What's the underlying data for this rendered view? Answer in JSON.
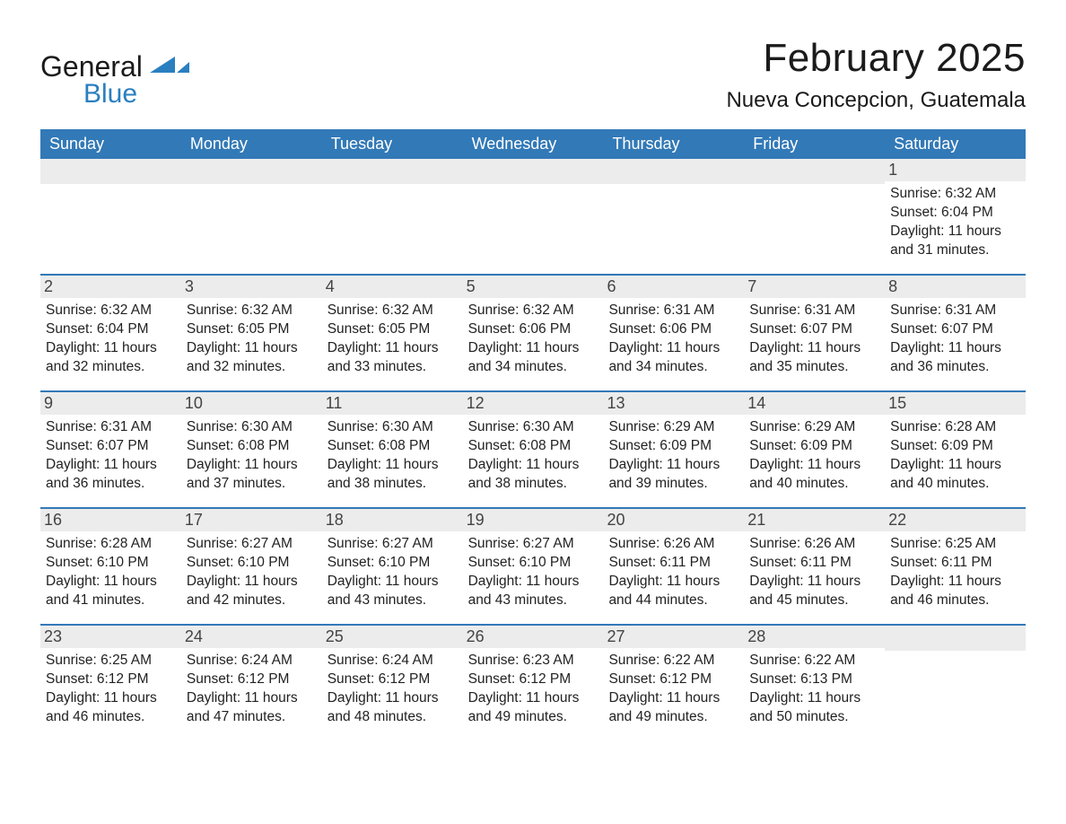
{
  "brand": {
    "general": "General",
    "blue": "Blue"
  },
  "title": "February 2025",
  "location": "Nueva Concepcion, Guatemala",
  "colors": {
    "header_bg": "#3279b7",
    "header_text": "#ffffff",
    "daynum_bg": "#ececec",
    "rule": "#3279b7",
    "accent": "#2a7fbf",
    "text": "#222222"
  },
  "fonts": {
    "title_size": 44,
    "location_size": 24,
    "weekday_size": 18,
    "body_size": 15.5
  },
  "weekdays": [
    "Sunday",
    "Monday",
    "Tuesday",
    "Wednesday",
    "Thursday",
    "Friday",
    "Saturday"
  ],
  "weeks": [
    [
      null,
      null,
      null,
      null,
      null,
      null,
      {
        "n": "1",
        "sunrise": "Sunrise: 6:32 AM",
        "sunset": "Sunset: 6:04 PM",
        "day1": "Daylight: 11 hours",
        "day2": "and 31 minutes."
      }
    ],
    [
      {
        "n": "2",
        "sunrise": "Sunrise: 6:32 AM",
        "sunset": "Sunset: 6:04 PM",
        "day1": "Daylight: 11 hours",
        "day2": "and 32 minutes."
      },
      {
        "n": "3",
        "sunrise": "Sunrise: 6:32 AM",
        "sunset": "Sunset: 6:05 PM",
        "day1": "Daylight: 11 hours",
        "day2": "and 32 minutes."
      },
      {
        "n": "4",
        "sunrise": "Sunrise: 6:32 AM",
        "sunset": "Sunset: 6:05 PM",
        "day1": "Daylight: 11 hours",
        "day2": "and 33 minutes."
      },
      {
        "n": "5",
        "sunrise": "Sunrise: 6:32 AM",
        "sunset": "Sunset: 6:06 PM",
        "day1": "Daylight: 11 hours",
        "day2": "and 34 minutes."
      },
      {
        "n": "6",
        "sunrise": "Sunrise: 6:31 AM",
        "sunset": "Sunset: 6:06 PM",
        "day1": "Daylight: 11 hours",
        "day2": "and 34 minutes."
      },
      {
        "n": "7",
        "sunrise": "Sunrise: 6:31 AM",
        "sunset": "Sunset: 6:07 PM",
        "day1": "Daylight: 11 hours",
        "day2": "and 35 minutes."
      },
      {
        "n": "8",
        "sunrise": "Sunrise: 6:31 AM",
        "sunset": "Sunset: 6:07 PM",
        "day1": "Daylight: 11 hours",
        "day2": "and 36 minutes."
      }
    ],
    [
      {
        "n": "9",
        "sunrise": "Sunrise: 6:31 AM",
        "sunset": "Sunset: 6:07 PM",
        "day1": "Daylight: 11 hours",
        "day2": "and 36 minutes."
      },
      {
        "n": "10",
        "sunrise": "Sunrise: 6:30 AM",
        "sunset": "Sunset: 6:08 PM",
        "day1": "Daylight: 11 hours",
        "day2": "and 37 minutes."
      },
      {
        "n": "11",
        "sunrise": "Sunrise: 6:30 AM",
        "sunset": "Sunset: 6:08 PM",
        "day1": "Daylight: 11 hours",
        "day2": "and 38 minutes."
      },
      {
        "n": "12",
        "sunrise": "Sunrise: 6:30 AM",
        "sunset": "Sunset: 6:08 PM",
        "day1": "Daylight: 11 hours",
        "day2": "and 38 minutes."
      },
      {
        "n": "13",
        "sunrise": "Sunrise: 6:29 AM",
        "sunset": "Sunset: 6:09 PM",
        "day1": "Daylight: 11 hours",
        "day2": "and 39 minutes."
      },
      {
        "n": "14",
        "sunrise": "Sunrise: 6:29 AM",
        "sunset": "Sunset: 6:09 PM",
        "day1": "Daylight: 11 hours",
        "day2": "and 40 minutes."
      },
      {
        "n": "15",
        "sunrise": "Sunrise: 6:28 AM",
        "sunset": "Sunset: 6:09 PM",
        "day1": "Daylight: 11 hours",
        "day2": "and 40 minutes."
      }
    ],
    [
      {
        "n": "16",
        "sunrise": "Sunrise: 6:28 AM",
        "sunset": "Sunset: 6:10 PM",
        "day1": "Daylight: 11 hours",
        "day2": "and 41 minutes."
      },
      {
        "n": "17",
        "sunrise": "Sunrise: 6:27 AM",
        "sunset": "Sunset: 6:10 PM",
        "day1": "Daylight: 11 hours",
        "day2": "and 42 minutes."
      },
      {
        "n": "18",
        "sunrise": "Sunrise: 6:27 AM",
        "sunset": "Sunset: 6:10 PM",
        "day1": "Daylight: 11 hours",
        "day2": "and 43 minutes."
      },
      {
        "n": "19",
        "sunrise": "Sunrise: 6:27 AM",
        "sunset": "Sunset: 6:10 PM",
        "day1": "Daylight: 11 hours",
        "day2": "and 43 minutes."
      },
      {
        "n": "20",
        "sunrise": "Sunrise: 6:26 AM",
        "sunset": "Sunset: 6:11 PM",
        "day1": "Daylight: 11 hours",
        "day2": "and 44 minutes."
      },
      {
        "n": "21",
        "sunrise": "Sunrise: 6:26 AM",
        "sunset": "Sunset: 6:11 PM",
        "day1": "Daylight: 11 hours",
        "day2": "and 45 minutes."
      },
      {
        "n": "22",
        "sunrise": "Sunrise: 6:25 AM",
        "sunset": "Sunset: 6:11 PM",
        "day1": "Daylight: 11 hours",
        "day2": "and 46 minutes."
      }
    ],
    [
      {
        "n": "23",
        "sunrise": "Sunrise: 6:25 AM",
        "sunset": "Sunset: 6:12 PM",
        "day1": "Daylight: 11 hours",
        "day2": "and 46 minutes."
      },
      {
        "n": "24",
        "sunrise": "Sunrise: 6:24 AM",
        "sunset": "Sunset: 6:12 PM",
        "day1": "Daylight: 11 hours",
        "day2": "and 47 minutes."
      },
      {
        "n": "25",
        "sunrise": "Sunrise: 6:24 AM",
        "sunset": "Sunset: 6:12 PM",
        "day1": "Daylight: 11 hours",
        "day2": "and 48 minutes."
      },
      {
        "n": "26",
        "sunrise": "Sunrise: 6:23 AM",
        "sunset": "Sunset: 6:12 PM",
        "day1": "Daylight: 11 hours",
        "day2": "and 49 minutes."
      },
      {
        "n": "27",
        "sunrise": "Sunrise: 6:22 AM",
        "sunset": "Sunset: 6:12 PM",
        "day1": "Daylight: 11 hours",
        "day2": "and 49 minutes."
      },
      {
        "n": "28",
        "sunrise": "Sunrise: 6:22 AM",
        "sunset": "Sunset: 6:13 PM",
        "day1": "Daylight: 11 hours",
        "day2": "and 50 minutes."
      },
      null
    ]
  ]
}
